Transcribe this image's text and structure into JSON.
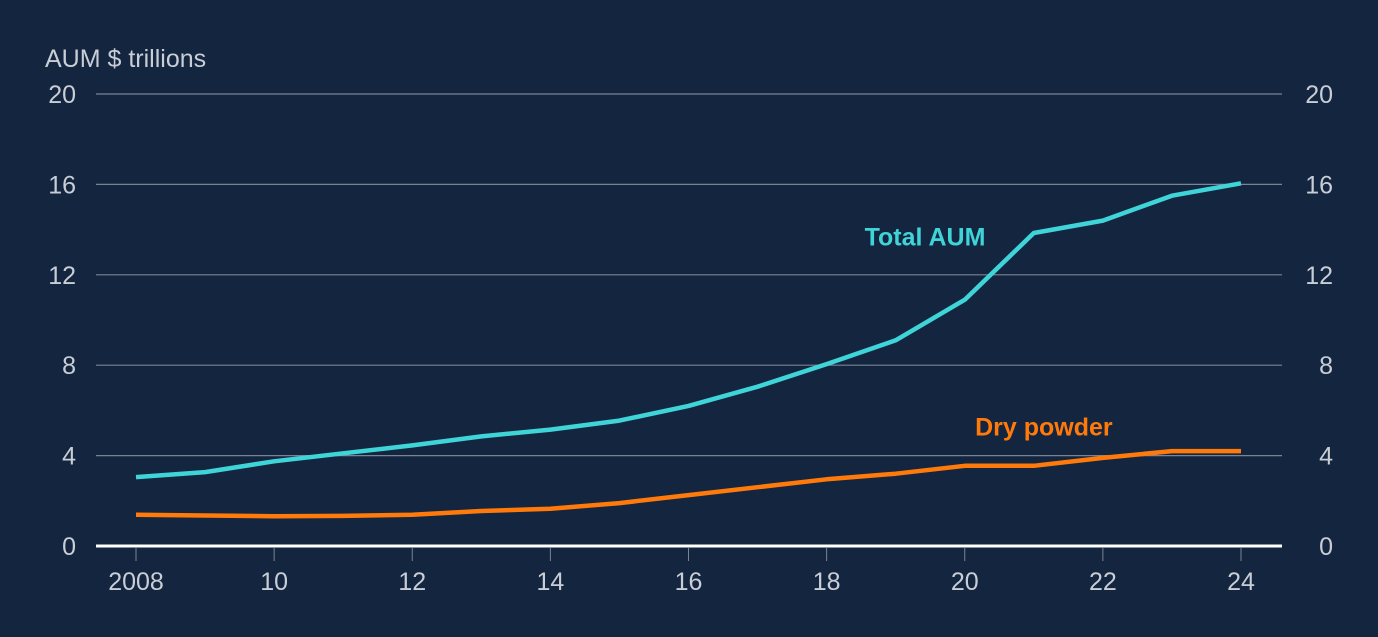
{
  "colors": {
    "background": "#13253f",
    "grid": "#7b8494",
    "baseline": "#ffffff",
    "text": "#c9cdd6",
    "total_aum": "#3fd4d8",
    "dry_powder": "#ff7a0a"
  },
  "chart_data": {
    "type": "line",
    "title": "",
    "ylabel": "AUM $ trillions",
    "xlabel": "",
    "ylim": [
      0,
      20
    ],
    "yticks": [
      0,
      4,
      8,
      12,
      16,
      20
    ],
    "ytick_labels": [
      "0",
      "4",
      "8",
      "12",
      "16",
      "20"
    ],
    "dual_y_axis_labels": true,
    "xticks": [
      2008,
      2010,
      2012,
      2014,
      2016,
      2018,
      2020,
      2022,
      2024
    ],
    "xtick_labels": [
      "2008",
      "10",
      "12",
      "14",
      "16",
      "18",
      "20",
      "22",
      "24"
    ],
    "x": [
      2008,
      2009,
      2010,
      2011,
      2012,
      2013,
      2014,
      2015,
      2016,
      2017,
      2018,
      2019,
      2020,
      2021,
      2022,
      2023,
      2024
    ],
    "grid": true,
    "legend": "inline labels",
    "series": [
      {
        "name": "Total AUM",
        "color": "#3fd4d8",
        "values": [
          3.05,
          3.27,
          3.75,
          4.1,
          4.45,
          4.85,
          5.15,
          5.55,
          6.2,
          7.05,
          8.05,
          9.1,
          10.9,
          13.85,
          14.4,
          15.5,
          16.05
        ],
        "label_position": {
          "x": 2018.55,
          "y": 13.3
        }
      },
      {
        "name": "Dry powder",
        "color": "#ff7a0a",
        "values": [
          1.38,
          1.35,
          1.32,
          1.33,
          1.38,
          1.55,
          1.65,
          1.9,
          2.25,
          2.6,
          2.95,
          3.2,
          3.55,
          3.55,
          3.9,
          4.2,
          4.2
        ],
        "label_position": {
          "x": 2020.15,
          "y": 4.9
        }
      }
    ]
  }
}
